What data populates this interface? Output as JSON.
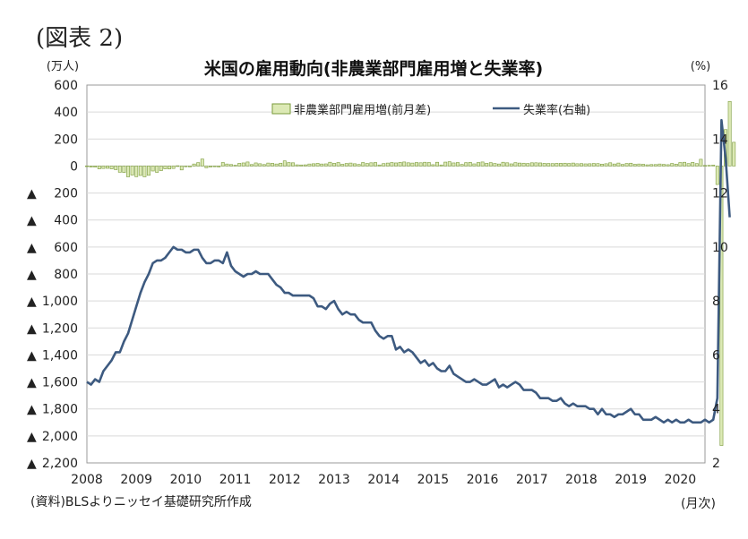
{
  "figure_label": "(図表 2)",
  "source_note": "(資料)BLSよりニッセイ基礎研究所作成",
  "x_unit": "(月次)",
  "chart_data": {
    "type": "bar+line",
    "title": "米国の雇用動向(非農業部門雇用増と失業率)",
    "y_left_unit": "(万人)",
    "y_right_unit": "(%)",
    "y_left_ylim": [
      -2200,
      600
    ],
    "y_right_ylim": [
      2,
      16
    ],
    "y_left_ticks": [
      {
        "value": 600,
        "label": "600"
      },
      {
        "value": 400,
        "label": "400"
      },
      {
        "value": 200,
        "label": "200"
      },
      {
        "value": 0,
        "label": "0"
      },
      {
        "value": -200,
        "label": "▲ 200"
      },
      {
        "value": -400,
        "label": "▲ 400"
      },
      {
        "value": -600,
        "label": "▲ 600"
      },
      {
        "value": -800,
        "label": "▲ 800"
      },
      {
        "value": -1000,
        "label": "▲ 1,000"
      },
      {
        "value": -1200,
        "label": "▲ 1,200"
      },
      {
        "value": -1400,
        "label": "▲ 1,400"
      },
      {
        "value": -1600,
        "label": "▲ 1,600"
      },
      {
        "value": -1800,
        "label": "▲ 1,800"
      },
      {
        "value": -2000,
        "label": "▲ 2,000"
      },
      {
        "value": -2200,
        "label": "▲ 2,200"
      }
    ],
    "y_right_ticks": [
      16,
      14,
      12,
      10,
      8,
      6,
      4,
      2
    ],
    "x_start": {
      "year": 2008,
      "month": 1
    },
    "x_end": {
      "year": 2020,
      "month": 7
    },
    "x_ticks": [
      "2008",
      "2009",
      "2010",
      "2011",
      "2012",
      "2013",
      "2014",
      "2015",
      "2016",
      "2017",
      "2018",
      "2019",
      "2020"
    ],
    "legend": [
      {
        "name": "非農業部門雇用増(前月差)",
        "kind": "bar"
      },
      {
        "name": "失業率(右軸)",
        "kind": "line"
      }
    ],
    "legend_position": "top-right",
    "colors": {
      "bar_fill": "#dce9b5",
      "bar_stroke": "#7a9a3a",
      "line": "#3d5a80",
      "grid": "#d9d9d9",
      "axis": "#999999"
    },
    "payroll_change_series": {
      "name": "非農業部門雇用増(前月差)",
      "values": [
        1,
        -8,
        -8,
        -21,
        -18,
        -17,
        -21,
        -27,
        -46,
        -48,
        -80,
        -67,
        -79,
        -70,
        -80,
        -69,
        -37,
        -47,
        -34,
        -21,
        -22,
        -18,
        2,
        -29,
        0,
        -6,
        15,
        25,
        52,
        -13,
        -7,
        -4,
        -7,
        26,
        15,
        11,
        6,
        20,
        23,
        30,
        11,
        23,
        17,
        11,
        22,
        20,
        15,
        21,
        38,
        26,
        24,
        9,
        8,
        9,
        15,
        17,
        20,
        15,
        16,
        28,
        20,
        26,
        13,
        19,
        22,
        17,
        12,
        26,
        19,
        24,
        26,
        8,
        18,
        22,
        26,
        23,
        27,
        30,
        24,
        22,
        26,
        24,
        28,
        26,
        10,
        28,
        8,
        29,
        32,
        23,
        26,
        12,
        25,
        27,
        16,
        26,
        30,
        20,
        25,
        19,
        15,
        28,
        24,
        16,
        25,
        22,
        21,
        19,
        24,
        24,
        23,
        20,
        19,
        18,
        20,
        20,
        21,
        19,
        22,
        17,
        18,
        16,
        17,
        19,
        18,
        14,
        17,
        24,
        15,
        22,
        12,
        19,
        21,
        13,
        15,
        13,
        9,
        11,
        11,
        15,
        12,
        10,
        19,
        14,
        26,
        28,
        18,
        27,
        18,
        50,
        4,
        5,
        7,
        -137,
        -2071,
        270,
        479,
        176
      ]
    },
    "unemployment_rate_series": {
      "name": "失業率(右軸)",
      "values": [
        5.0,
        4.9,
        5.1,
        5.0,
        5.4,
        5.6,
        5.8,
        6.1,
        6.1,
        6.5,
        6.8,
        7.3,
        7.8,
        8.3,
        8.7,
        9.0,
        9.4,
        9.5,
        9.5,
        9.6,
        9.8,
        10.0,
        9.9,
        9.9,
        9.8,
        9.8,
        9.9,
        9.9,
        9.6,
        9.4,
        9.4,
        9.5,
        9.5,
        9.4,
        9.8,
        9.3,
        9.1,
        9.0,
        8.9,
        9.0,
        9.0,
        9.1,
        9.0,
        9.0,
        9.0,
        8.8,
        8.6,
        8.5,
        8.3,
        8.3,
        8.2,
        8.2,
        8.2,
        8.2,
        8.2,
        8.1,
        7.8,
        7.8,
        7.7,
        7.9,
        8.0,
        7.7,
        7.5,
        7.6,
        7.5,
        7.5,
        7.3,
        7.2,
        7.2,
        7.2,
        6.9,
        6.7,
        6.6,
        6.7,
        6.7,
        6.2,
        6.3,
        6.1,
        6.2,
        6.1,
        5.9,
        5.7,
        5.8,
        5.6,
        5.7,
        5.5,
        5.4,
        5.4,
        5.6,
        5.3,
        5.2,
        5.1,
        5.0,
        5.0,
        5.1,
        5.0,
        4.9,
        4.9,
        5.0,
        5.1,
        4.8,
        4.9,
        4.8,
        4.9,
        5.0,
        4.9,
        4.7,
        4.7,
        4.7,
        4.6,
        4.4,
        4.4,
        4.4,
        4.3,
        4.3,
        4.4,
        4.2,
        4.1,
        4.2,
        4.1,
        4.1,
        4.1,
        4.0,
        4.0,
        3.8,
        4.0,
        3.8,
        3.8,
        3.7,
        3.8,
        3.8,
        3.9,
        4.0,
        3.8,
        3.8,
        3.6,
        3.6,
        3.6,
        3.7,
        3.6,
        3.5,
        3.6,
        3.5,
        3.6,
        3.5,
        3.5,
        3.6,
        3.5,
        3.5,
        3.5,
        3.6,
        3.5,
        3.6,
        4.4,
        14.7,
        13.3,
        11.1
      ]
    }
  }
}
